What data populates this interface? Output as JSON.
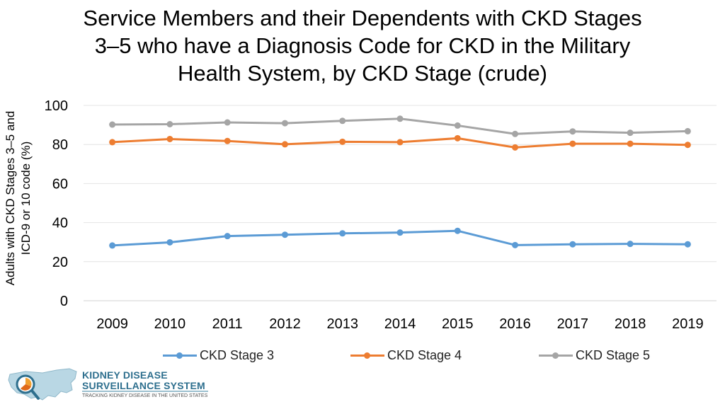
{
  "title_lines": [
    "Service Members and their Dependents with CKD Stages",
    "3–5 who have a Diagnosis Code for CKD in the Military",
    "Health System, by CKD Stage (crude)"
  ],
  "ylabel_lines": [
    "Adults with CKD Stages 3–5 and",
    "ICD-9 or 10 code (%)"
  ],
  "chart_data": {
    "type": "line",
    "title": "Service Members and their Dependents with CKD Stages 3–5 who have a Diagnosis Code for CKD in the Military Health System, by CKD Stage (crude)",
    "xlabel": "",
    "ylabel": "Adults with CKD Stages 3–5 and ICD-9 or 10 code (%)",
    "categories": [
      "2009",
      "2010",
      "2011",
      "2012",
      "2013",
      "2014",
      "2015",
      "2016",
      "2017",
      "2018",
      "2019"
    ],
    "ylim": [
      0,
      100
    ],
    "yticks": [
      0,
      20,
      40,
      60,
      80,
      100
    ],
    "grid": true,
    "legend_position": "bottom",
    "series": [
      {
        "name": "CKD Stage 3",
        "color": "#5b9bd5",
        "values": [
          28.3,
          29.9,
          33.1,
          33.8,
          34.5,
          34.9,
          35.8,
          28.5,
          28.9,
          29.1,
          28.9
        ]
      },
      {
        "name": "CKD Stage 4",
        "color": "#ed7d31",
        "values": [
          81.2,
          82.8,
          81.8,
          80.1,
          81.4,
          81.2,
          83.2,
          78.5,
          80.4,
          80.4,
          79.8
        ]
      },
      {
        "name": "CKD Stage 5",
        "color": "#a5a5a5",
        "values": [
          90.2,
          90.4,
          91.3,
          90.9,
          92.1,
          93.2,
          89.7,
          85.4,
          86.7,
          86.0,
          86.8
        ]
      }
    ]
  },
  "logo": {
    "line1": "KIDNEY DISEASE",
    "line2": "SURVEILLANCE SYSTEM",
    "line3": "TRACKING KIDNEY DISEASE IN THE UNITED STATES"
  }
}
